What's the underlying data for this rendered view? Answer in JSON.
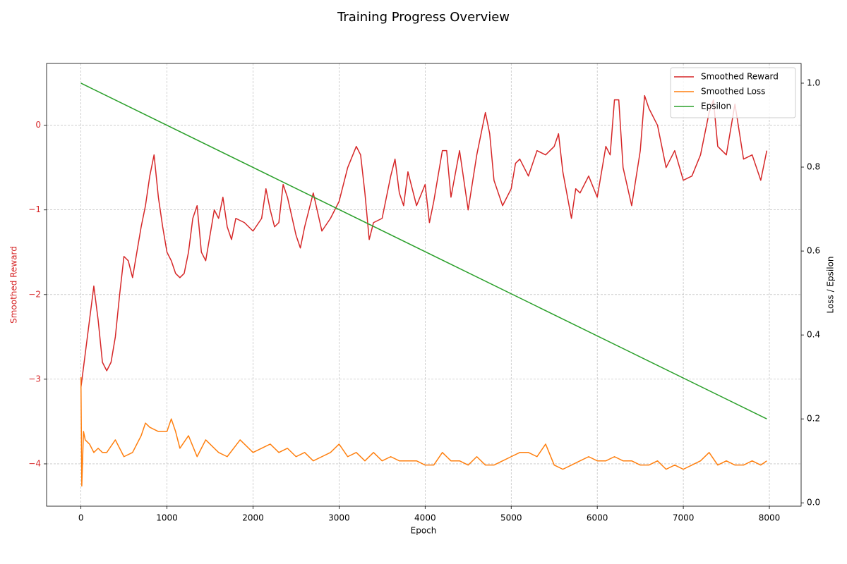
{
  "chart_data": {
    "type": "line",
    "title": "Training Progress Overview",
    "xlabel": "Epoch",
    "ylabel": "Smoothed Reward",
    "y2label": "Loss / Epsilon",
    "xlim": [
      -399,
      8369
    ],
    "ylim": [
      -4.5,
      0.73
    ],
    "y2lim": [
      -0.008,
      1.047
    ],
    "xticks": [
      0,
      1000,
      2000,
      3000,
      4000,
      5000,
      6000,
      7000,
      8000
    ],
    "yticks": [
      {
        "value": -4,
        "label": "−4"
      },
      {
        "value": -3,
        "label": "−3"
      },
      {
        "value": -2,
        "label": "−2"
      },
      {
        "value": -1,
        "label": "−1"
      },
      0
    ],
    "y2ticks": [
      {
        "value": 0,
        "label": "0.0"
      },
      0.2,
      0.4,
      0.6,
      0.8,
      {
        "value": 1,
        "label": "1.0"
      }
    ],
    "grid": true,
    "legend": "upper right",
    "ylabel_color": "#d62728",
    "series": [
      {
        "name": "Smoothed Reward",
        "color": "#d62728",
        "axis": "y",
        "x": [
          0,
          100,
          150,
          200,
          250,
          300,
          350,
          400,
          450,
          500,
          550,
          600,
          650,
          700,
          750,
          800,
          850,
          900,
          950,
          1000,
          1050,
          1100,
          1150,
          1200,
          1250,
          1300,
          1350,
          1400,
          1450,
          1500,
          1550,
          1600,
          1650,
          1700,
          1750,
          1800,
          1900,
          2000,
          2100,
          2150,
          2200,
          2250,
          2300,
          2350,
          2400,
          2500,
          2550,
          2600,
          2700,
          2800,
          2900,
          3000,
          3100,
          3200,
          3250,
          3300,
          3350,
          3400,
          3500,
          3600,
          3650,
          3700,
          3750,
          3800,
          3900,
          4000,
          4050,
          4100,
          4200,
          4250,
          4300,
          4400,
          4500,
          4600,
          4700,
          4750,
          4800,
          4900,
          5000,
          5050,
          5100,
          5200,
          5300,
          5400,
          5500,
          5550,
          5600,
          5700,
          5750,
          5800,
          5900,
          6000,
          6100,
          6150,
          6200,
          6250,
          6300,
          6400,
          6500,
          6550,
          6600,
          6700,
          6800,
          6900,
          7000,
          7100,
          7200,
          7300,
          7350,
          7400,
          7500,
          7600,
          7700,
          7800,
          7900,
          7970
        ],
        "values": [
          -3.1,
          -2.3,
          -1.9,
          -2.3,
          -2.8,
          -2.9,
          -2.8,
          -2.5,
          -2.0,
          -1.55,
          -1.6,
          -1.8,
          -1.5,
          -1.2,
          -0.95,
          -0.6,
          -0.35,
          -0.85,
          -1.2,
          -1.5,
          -1.6,
          -1.75,
          -1.8,
          -1.75,
          -1.5,
          -1.1,
          -0.95,
          -1.5,
          -1.6,
          -1.3,
          -1.0,
          -1.1,
          -0.85,
          -1.2,
          -1.35,
          -1.1,
          -1.15,
          -1.25,
          -1.1,
          -0.75,
          -1.0,
          -1.2,
          -1.15,
          -0.7,
          -0.85,
          -1.3,
          -1.45,
          -1.2,
          -0.8,
          -1.25,
          -1.1,
          -0.9,
          -0.5,
          -0.25,
          -0.35,
          -0.8,
          -1.35,
          -1.15,
          -1.1,
          -0.6,
          -0.4,
          -0.8,
          -0.95,
          -0.55,
          -0.95,
          -0.7,
          -1.15,
          -0.9,
          -0.3,
          -0.3,
          -0.85,
          -0.3,
          -1.0,
          -0.35,
          0.15,
          -0.1,
          -0.65,
          -0.95,
          -0.75,
          -0.45,
          -0.4,
          -0.6,
          -0.3,
          -0.35,
          -0.25,
          -0.1,
          -0.55,
          -1.1,
          -0.75,
          -0.8,
          -0.6,
          -0.85,
          -0.25,
          -0.35,
          0.3,
          0.3,
          -0.5,
          -0.95,
          -0.3,
          0.35,
          0.2,
          0.0,
          -0.5,
          -0.3,
          -0.65,
          -0.6,
          -0.35,
          0.15,
          0.3,
          -0.25,
          -0.35,
          0.25,
          -0.4,
          -0.35,
          -0.65,
          -0.3
        ]
      },
      {
        "name": "Smoothed Loss",
        "color": "#ff7f0e",
        "axis": "y2",
        "x": [
          0,
          10,
          30,
          50,
          100,
          150,
          200,
          250,
          300,
          400,
          500,
          600,
          700,
          750,
          800,
          900,
          1000,
          1050,
          1100,
          1150,
          1250,
          1350,
          1450,
          1600,
          1700,
          1850,
          2000,
          2100,
          2200,
          2300,
          2400,
          2500,
          2600,
          2700,
          2800,
          2900,
          3000,
          3100,
          3200,
          3300,
          3400,
          3500,
          3600,
          3700,
          3800,
          3900,
          4000,
          4100,
          4200,
          4300,
          4400,
          4500,
          4600,
          4700,
          4800,
          4900,
          5000,
          5100,
          5200,
          5300,
          5400,
          5500,
          5600,
          5700,
          5800,
          5900,
          6000,
          6100,
          6200,
          6300,
          6400,
          6500,
          6600,
          6700,
          6800,
          6900,
          7000,
          7100,
          7200,
          7300,
          7400,
          7500,
          7600,
          7700,
          7800,
          7900,
          7970
        ],
        "values": [
          0.3,
          0.04,
          0.17,
          0.15,
          0.14,
          0.12,
          0.13,
          0.12,
          0.12,
          0.15,
          0.11,
          0.12,
          0.16,
          0.19,
          0.18,
          0.17,
          0.17,
          0.2,
          0.17,
          0.13,
          0.16,
          0.11,
          0.15,
          0.12,
          0.11,
          0.15,
          0.12,
          0.13,
          0.14,
          0.12,
          0.13,
          0.11,
          0.12,
          0.1,
          0.11,
          0.12,
          0.14,
          0.11,
          0.12,
          0.1,
          0.12,
          0.1,
          0.11,
          0.1,
          0.1,
          0.1,
          0.09,
          0.09,
          0.12,
          0.1,
          0.1,
          0.09,
          0.11,
          0.09,
          0.09,
          0.1,
          0.11,
          0.12,
          0.12,
          0.11,
          0.14,
          0.09,
          0.08,
          0.09,
          0.1,
          0.11,
          0.1,
          0.1,
          0.11,
          0.1,
          0.1,
          0.09,
          0.09,
          0.1,
          0.08,
          0.09,
          0.08,
          0.09,
          0.1,
          0.12,
          0.09,
          0.1,
          0.09,
          0.09,
          0.1,
          0.09,
          0.1
        ]
      },
      {
        "name": "Epsilon",
        "color": "#2ca02c",
        "axis": "y2",
        "x": [
          0,
          7970
        ],
        "values": [
          1.0,
          0.2
        ]
      }
    ]
  }
}
